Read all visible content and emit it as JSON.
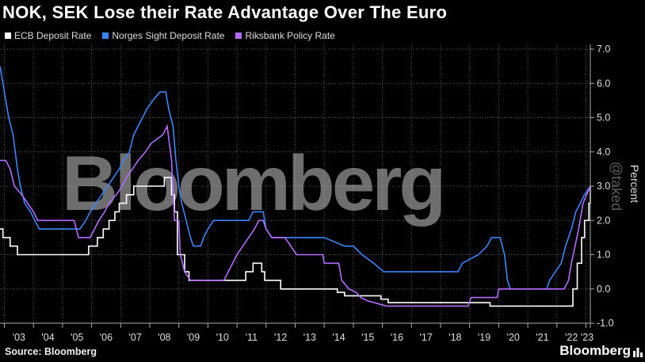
{
  "title": "NOK, SEK Lose their Rate Advantage Over The Euro",
  "source": "Source: Bloomberg",
  "brand": "Bloomberg",
  "watermark": "Bloomberg",
  "watermark_small": "@taked",
  "colors": {
    "background": "#000000",
    "ecb": "#ffffff",
    "norges": "#3a86ff",
    "riksbank": "#b36cff"
  },
  "chart_data": {
    "type": "line",
    "title": "NOK, SEK Lose their Rate Advantage Over The Euro",
    "xlabel": "",
    "ylabel": "Percent",
    "ylim": [
      -1.0,
      7.0
    ],
    "xlim": [
      2002.85,
      2023.15
    ],
    "yticks": [
      7.0,
      6.0,
      5.0,
      4.0,
      3.0,
      2.0,
      1.0,
      0.0,
      -1.0
    ],
    "ytick_labels": [
      "7.0",
      "6.0",
      "5.0",
      "4.0",
      "3.0",
      "2.0",
      "1.0",
      "0.0",
      "-1.0"
    ],
    "xticks": [
      2003,
      2004,
      2005,
      2006,
      2007,
      2008,
      2009,
      2010,
      2011,
      2012,
      2013,
      2014,
      2015,
      2016,
      2017,
      2018,
      2019,
      2020,
      2021,
      2022,
      2023
    ],
    "xtick_labels": [
      "'03",
      "'04",
      "'05",
      "'06",
      "'07",
      "'08",
      "'09",
      "'10",
      "'11",
      "'12",
      "'13",
      "'14",
      "'15",
      "'16",
      "'17",
      "'18",
      "'19",
      "'20",
      "'21",
      "'22",
      "'23"
    ],
    "grid": true,
    "legend_position": "top-left",
    "series": [
      {
        "name": "ECB Deposit Rate",
        "color": "#ffffff",
        "points": [
          [
            2002.85,
            1.75
          ],
          [
            2002.95,
            1.75
          ],
          [
            2002.95,
            1.5
          ],
          [
            2003.2,
            1.5
          ],
          [
            2003.2,
            1.25
          ],
          [
            2003.45,
            1.25
          ],
          [
            2003.45,
            1.0
          ],
          [
            2005.9,
            1.0
          ],
          [
            2005.9,
            1.25
          ],
          [
            2006.2,
            1.25
          ],
          [
            2006.2,
            1.5
          ],
          [
            2006.4,
            1.5
          ],
          [
            2006.4,
            1.75
          ],
          [
            2006.6,
            1.75
          ],
          [
            2006.6,
            2.0
          ],
          [
            2006.8,
            2.0
          ],
          [
            2006.8,
            2.25
          ],
          [
            2006.95,
            2.25
          ],
          [
            2006.95,
            2.5
          ],
          [
            2007.2,
            2.5
          ],
          [
            2007.2,
            2.75
          ],
          [
            2007.45,
            2.75
          ],
          [
            2007.45,
            3.0
          ],
          [
            2008.5,
            3.0
          ],
          [
            2008.5,
            3.25
          ],
          [
            2008.75,
            3.25
          ],
          [
            2008.75,
            2.75
          ],
          [
            2008.85,
            2.75
          ],
          [
            2008.85,
            2.25
          ],
          [
            2008.95,
            2.25
          ],
          [
            2008.95,
            1.0
          ],
          [
            2009.2,
            1.0
          ],
          [
            2009.2,
            0.5
          ],
          [
            2009.35,
            0.5
          ],
          [
            2009.35,
            0.25
          ],
          [
            2011.3,
            0.25
          ],
          [
            2011.3,
            0.5
          ],
          [
            2011.55,
            0.5
          ],
          [
            2011.55,
            0.75
          ],
          [
            2011.85,
            0.75
          ],
          [
            2011.85,
            0.5
          ],
          [
            2011.95,
            0.5
          ],
          [
            2011.95,
            0.25
          ],
          [
            2012.5,
            0.25
          ],
          [
            2012.5,
            0.0
          ],
          [
            2014.45,
            0.0
          ],
          [
            2014.45,
            -0.1
          ],
          [
            2014.7,
            -0.1
          ],
          [
            2014.7,
            -0.2
          ],
          [
            2015.95,
            -0.2
          ],
          [
            2015.95,
            -0.3
          ],
          [
            2016.2,
            -0.3
          ],
          [
            2016.2,
            -0.4
          ],
          [
            2019.7,
            -0.4
          ],
          [
            2019.7,
            -0.5
          ],
          [
            2022.55,
            -0.5
          ],
          [
            2022.55,
            0.0
          ],
          [
            2022.7,
            0.0
          ],
          [
            2022.7,
            0.75
          ],
          [
            2022.85,
            0.75
          ],
          [
            2022.85,
            1.5
          ],
          [
            2022.95,
            1.5
          ],
          [
            2022.95,
            2.0
          ],
          [
            2023.1,
            2.0
          ],
          [
            2023.1,
            2.5
          ],
          [
            2023.15,
            2.5
          ],
          [
            2023.15,
            3.0
          ]
        ]
      },
      {
        "name": "Norges Sight Deposit Rate",
        "color": "#3a86ff",
        "points": [
          [
            2002.85,
            6.5
          ],
          [
            2002.95,
            6.0
          ],
          [
            2003.05,
            5.5
          ],
          [
            2003.15,
            5.0
          ],
          [
            2003.3,
            4.5
          ],
          [
            2003.45,
            3.5
          ],
          [
            2003.55,
            3.0
          ],
          [
            2003.7,
            2.5
          ],
          [
            2003.9,
            2.25
          ],
          [
            2004.05,
            2.0
          ],
          [
            2004.2,
            1.75
          ],
          [
            2005.6,
            1.75
          ],
          [
            2005.8,
            2.0
          ],
          [
            2005.95,
            2.25
          ],
          [
            2006.15,
            2.5
          ],
          [
            2006.35,
            2.75
          ],
          [
            2006.55,
            3.0
          ],
          [
            2006.75,
            3.25
          ],
          [
            2006.95,
            3.5
          ],
          [
            2007.1,
            3.75
          ],
          [
            2007.3,
            4.0
          ],
          [
            2007.45,
            4.5
          ],
          [
            2007.6,
            4.75
          ],
          [
            2007.75,
            5.0
          ],
          [
            2007.9,
            5.25
          ],
          [
            2008.1,
            5.5
          ],
          [
            2008.35,
            5.75
          ],
          [
            2008.55,
            5.75
          ],
          [
            2008.65,
            5.25
          ],
          [
            2008.8,
            4.75
          ],
          [
            2008.9,
            3.75
          ],
          [
            2009.0,
            3.0
          ],
          [
            2009.1,
            2.5
          ],
          [
            2009.25,
            2.0
          ],
          [
            2009.4,
            1.5
          ],
          [
            2009.5,
            1.25
          ],
          [
            2009.75,
            1.25
          ],
          [
            2009.85,
            1.5
          ],
          [
            2010.0,
            1.75
          ],
          [
            2010.2,
            2.0
          ],
          [
            2011.4,
            2.0
          ],
          [
            2011.55,
            2.25
          ],
          [
            2011.9,
            2.25
          ],
          [
            2012.0,
            1.75
          ],
          [
            2012.2,
            1.5
          ],
          [
            2013.6,
            1.5
          ],
          [
            2014.0,
            1.5
          ],
          [
            2014.7,
            1.25
          ],
          [
            2015.0,
            1.25
          ],
          [
            2015.3,
            1.0
          ],
          [
            2015.7,
            0.75
          ],
          [
            2016.05,
            0.5
          ],
          [
            2018.6,
            0.5
          ],
          [
            2018.75,
            0.75
          ],
          [
            2019.3,
            1.0
          ],
          [
            2019.6,
            1.25
          ],
          [
            2019.75,
            1.5
          ],
          [
            2020.05,
            1.5
          ],
          [
            2020.2,
            1.0
          ],
          [
            2020.3,
            0.25
          ],
          [
            2020.4,
            0.0
          ],
          [
            2021.65,
            0.0
          ],
          [
            2021.75,
            0.25
          ],
          [
            2021.95,
            0.5
          ],
          [
            2022.15,
            0.75
          ],
          [
            2022.3,
            1.25
          ],
          [
            2022.5,
            1.75
          ],
          [
            2022.65,
            2.25
          ],
          [
            2022.8,
            2.5
          ],
          [
            2022.95,
            2.75
          ],
          [
            2023.15,
            3.0
          ]
        ]
      },
      {
        "name": "Riksbank Policy Rate",
        "color": "#b36cff",
        "points": [
          [
            2002.85,
            3.75
          ],
          [
            2003.05,
            3.75
          ],
          [
            2003.2,
            3.5
          ],
          [
            2003.35,
            3.0
          ],
          [
            2003.6,
            2.75
          ],
          [
            2003.8,
            2.5
          ],
          [
            2004.0,
            2.25
          ],
          [
            2004.15,
            2.0
          ],
          [
            2005.4,
            2.0
          ],
          [
            2005.55,
            1.5
          ],
          [
            2005.95,
            1.5
          ],
          [
            2006.1,
            1.75
          ],
          [
            2006.25,
            2.0
          ],
          [
            2006.45,
            2.25
          ],
          [
            2006.6,
            2.5
          ],
          [
            2006.85,
            2.75
          ],
          [
            2007.05,
            3.0
          ],
          [
            2007.2,
            3.25
          ],
          [
            2007.4,
            3.5
          ],
          [
            2007.6,
            3.75
          ],
          [
            2007.85,
            4.0
          ],
          [
            2008.05,
            4.25
          ],
          [
            2008.45,
            4.5
          ],
          [
            2008.6,
            4.75
          ],
          [
            2008.75,
            3.75
          ],
          [
            2008.85,
            2.0
          ],
          [
            2009.0,
            2.0
          ],
          [
            2009.05,
            1.0
          ],
          [
            2009.2,
            0.5
          ],
          [
            2009.4,
            0.25
          ],
          [
            2010.55,
            0.25
          ],
          [
            2010.7,
            0.5
          ],
          [
            2010.85,
            0.75
          ],
          [
            2011.0,
            1.0
          ],
          [
            2011.2,
            1.25
          ],
          [
            2011.4,
            1.5
          ],
          [
            2011.6,
            1.75
          ],
          [
            2011.75,
            2.0
          ],
          [
            2011.9,
            2.0
          ],
          [
            2012.0,
            1.75
          ],
          [
            2012.2,
            1.5
          ],
          [
            2012.65,
            1.5
          ],
          [
            2012.85,
            1.25
          ],
          [
            2013.05,
            1.0
          ],
          [
            2013.95,
            1.0
          ],
          [
            2014.0,
            0.75
          ],
          [
            2014.5,
            0.75
          ],
          [
            2014.6,
            0.25
          ],
          [
            2014.85,
            0.0
          ],
          [
            2015.1,
            -0.1
          ],
          [
            2015.25,
            -0.25
          ],
          [
            2015.5,
            -0.35
          ],
          [
            2016.15,
            -0.5
          ],
          [
            2018.95,
            -0.5
          ],
          [
            2019.05,
            -0.25
          ],
          [
            2019.95,
            -0.25
          ],
          [
            2020.0,
            0.0
          ],
          [
            2022.25,
            0.0
          ],
          [
            2022.4,
            0.25
          ],
          [
            2022.5,
            0.75
          ],
          [
            2022.75,
            1.75
          ],
          [
            2022.9,
            2.5
          ],
          [
            2023.15,
            3.0
          ]
        ]
      }
    ]
  }
}
